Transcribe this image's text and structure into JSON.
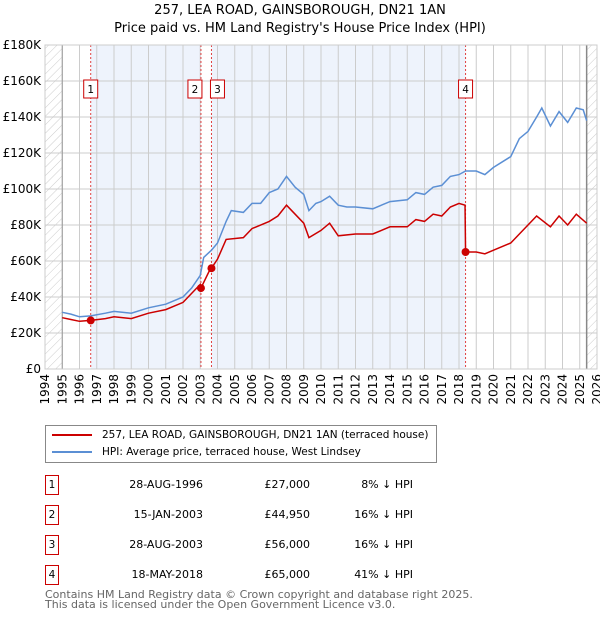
{
  "chart_data": {
    "type": "line",
    "title": "257, LEA ROAD, GAINSBOROUGH, DN21 1AN",
    "subtitle": "Price paid vs. HM Land Registry's House Price Index (HPI)",
    "xlim": [
      1994,
      2026
    ],
    "ylim": [
      0,
      180000
    ],
    "x_ticks": [
      "1994",
      "1995",
      "1996",
      "1997",
      "1998",
      "1999",
      "2000",
      "2001",
      "2002",
      "2003",
      "2004",
      "2005",
      "2006",
      "2007",
      "2008",
      "2009",
      "2010",
      "2011",
      "2012",
      "2013",
      "2014",
      "2015",
      "2016",
      "2017",
      "2018",
      "2019",
      "2020",
      "2021",
      "2022",
      "2023",
      "2024",
      "2025",
      "2026"
    ],
    "y_ticks": [
      {
        "v": 0,
        "l": "£0"
      },
      {
        "v": 20000,
        "l": "£20K"
      },
      {
        "v": 40000,
        "l": "£40K"
      },
      {
        "v": 60000,
        "l": "£60K"
      },
      {
        "v": 80000,
        "l": "£80K"
      },
      {
        "v": 100000,
        "l": "£100K"
      },
      {
        "v": 120000,
        "l": "£120K"
      },
      {
        "v": 140000,
        "l": "£140K"
      },
      {
        "v": 160000,
        "l": "£160K"
      },
      {
        "v": 180000,
        "l": "£180K"
      }
    ],
    "grid": true,
    "series": [
      {
        "name": "257, LEA ROAD, GAINSBOROUGH, DN21 1AN (terraced house)",
        "color": "#cc0000",
        "points": [
          [
            1995,
            28500
          ],
          [
            1995.5,
            27500
          ],
          [
            1996,
            26500
          ],
          [
            1996.65,
            27000
          ],
          [
            1997.5,
            28000
          ],
          [
            1998,
            29000
          ],
          [
            1999,
            28000
          ],
          [
            2000,
            31000
          ],
          [
            2001,
            33000
          ],
          [
            2002,
            37000
          ],
          [
            2002.5,
            42000
          ],
          [
            2003,
            47000
          ],
          [
            2003.04,
            44950
          ],
          [
            2003.5,
            54000
          ],
          [
            2003.65,
            56000
          ],
          [
            2004,
            61000
          ],
          [
            2004.5,
            72000
          ],
          [
            2005.5,
            73000
          ],
          [
            2006,
            78000
          ],
          [
            2007,
            82000
          ],
          [
            2007.5,
            85000
          ],
          [
            2008,
            91000
          ],
          [
            2008.5,
            86000
          ],
          [
            2009,
            81000
          ],
          [
            2009.3,
            73000
          ],
          [
            2010,
            77000
          ],
          [
            2010.5,
            81000
          ],
          [
            2011,
            74000
          ],
          [
            2012,
            75000
          ],
          [
            2013,
            75000
          ],
          [
            2014,
            79000
          ],
          [
            2015,
            79000
          ],
          [
            2015.5,
            83000
          ],
          [
            2016,
            82000
          ],
          [
            2016.5,
            86000
          ],
          [
            2017,
            85000
          ],
          [
            2017.5,
            90000
          ],
          [
            2018,
            92000
          ],
          [
            2018.35,
            91000
          ],
          [
            2018.38,
            65000
          ],
          [
            2019,
            65000
          ],
          [
            2019.5,
            64000
          ],
          [
            2020,
            66000
          ],
          [
            2021,
            70000
          ],
          [
            2021.5,
            75000
          ],
          [
            2022,
            80000
          ],
          [
            2022.5,
            85000
          ],
          [
            2023.3,
            79000
          ],
          [
            2023.8,
            85000
          ],
          [
            2024.3,
            80000
          ],
          [
            2024.8,
            86000
          ],
          [
            2025.4,
            81000
          ]
        ]
      },
      {
        "name": "HPI: Average price, terraced house, West Lindsey",
        "color": "#5b8fd4",
        "points": [
          [
            1995,
            31500
          ],
          [
            1995.5,
            30500
          ],
          [
            1996,
            29000
          ],
          [
            1996.65,
            29500
          ],
          [
            1997.5,
            31000
          ],
          [
            1998,
            32000
          ],
          [
            1999,
            31000
          ],
          [
            2000,
            34000
          ],
          [
            2001,
            36000
          ],
          [
            2002,
            40000
          ],
          [
            2002.5,
            45000
          ],
          [
            2003,
            52000
          ],
          [
            2003.2,
            62000
          ],
          [
            2003.65,
            66000
          ],
          [
            2004,
            70000
          ],
          [
            2004.5,
            82000
          ],
          [
            2004.8,
            88000
          ],
          [
            2005.5,
            87000
          ],
          [
            2006,
            92000
          ],
          [
            2006.5,
            92000
          ],
          [
            2007,
            98000
          ],
          [
            2007.5,
            100000
          ],
          [
            2008,
            107000
          ],
          [
            2008.5,
            101000
          ],
          [
            2009,
            97000
          ],
          [
            2009.3,
            88000
          ],
          [
            2009.7,
            92000
          ],
          [
            2010,
            93000
          ],
          [
            2010.5,
            96000
          ],
          [
            2011,
            91000
          ],
          [
            2011.5,
            90000
          ],
          [
            2012,
            90000
          ],
          [
            2013,
            89000
          ],
          [
            2014,
            93000
          ],
          [
            2015,
            94000
          ],
          [
            2015.5,
            98000
          ],
          [
            2016,
            97000
          ],
          [
            2016.5,
            101000
          ],
          [
            2017,
            102000
          ],
          [
            2017.5,
            107000
          ],
          [
            2018,
            108000
          ],
          [
            2018.38,
            110000
          ],
          [
            2019,
            110000
          ],
          [
            2019.5,
            108000
          ],
          [
            2020,
            112000
          ],
          [
            2021,
            118000
          ],
          [
            2021.5,
            128000
          ],
          [
            2022,
            132000
          ],
          [
            2022.5,
            140000
          ],
          [
            2022.8,
            145000
          ],
          [
            2023.3,
            135000
          ],
          [
            2023.8,
            143000
          ],
          [
            2024.3,
            137000
          ],
          [
            2024.8,
            145000
          ],
          [
            2025.2,
            144000
          ],
          [
            2025.4,
            138000
          ]
        ]
      }
    ],
    "sales": [
      {
        "label": "1",
        "x": 1996.65,
        "price": 27000
      },
      {
        "label": "2",
        "x": 2003.04,
        "price": 44950
      },
      {
        "label": "3",
        "x": 2003.65,
        "price": 56000
      },
      {
        "label": "4",
        "x": 2018.38,
        "price": 65000
      }
    ],
    "legend": "below"
  },
  "legend": {
    "property": "257, LEA ROAD, GAINSBOROUGH, DN21 1AN (terraced house)",
    "hpi": "HPI: Average price, terraced house, West Lindsey"
  },
  "transactions": [
    {
      "n": "1",
      "date": "28-AUG-1996",
      "price": "£27,000",
      "hpi": "8% ↓ HPI"
    },
    {
      "n": "2",
      "date": "15-JAN-2003",
      "price": "£44,950",
      "hpi": "16% ↓ HPI"
    },
    {
      "n": "3",
      "date": "28-AUG-2003",
      "price": "£56,000",
      "hpi": "16% ↓ HPI"
    },
    {
      "n": "4",
      "date": "18-MAY-2018",
      "price": "£65,000",
      "hpi": "41% ↓ HPI"
    }
  ],
  "footer": {
    "line1": "Contains HM Land Registry data © Crown copyright and database right 2025.",
    "line2": "This data is licensed under the Open Government Licence v3.0."
  }
}
